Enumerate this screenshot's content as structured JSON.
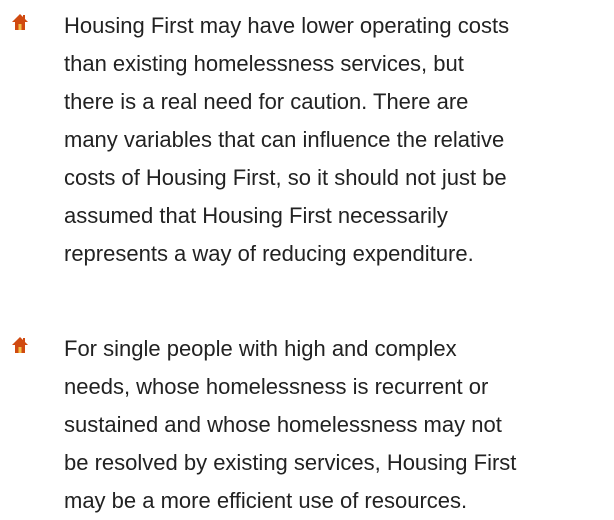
{
  "items": [
    {
      "lines": [
        "Housing First may have lower operating costs",
        "than existing homelessness services, but",
        "there is a real need for caution. There are",
        "many variables that can influence the relative",
        "costs of Housing First, so it should not just be",
        "assumed that Housing First necessarily",
        "represents a way of reducing expenditure."
      ]
    },
    {
      "lines": [
        "For single people with high and complex",
        "needs, whose homelessness is recurrent or",
        "sustained and whose homelessness may not",
        "be resolved by existing services, Housing First",
        "may be a more efficient use of resources."
      ]
    }
  ]
}
